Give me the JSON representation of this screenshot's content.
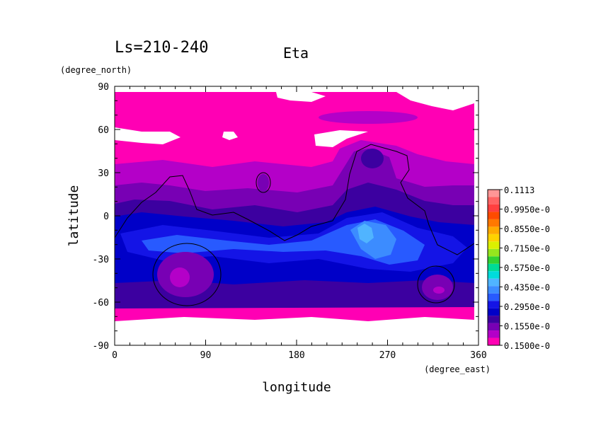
{
  "chart_data": {
    "type": "heatmap",
    "title": "Eta",
    "subtitle": "Ls=210-240",
    "xlabel": "longitude",
    "ylabel": "latitude",
    "x_unit": "(degree_east)",
    "y_unit": "(degree_north)",
    "xlim": [
      0,
      360
    ],
    "ylim": [
      -90,
      90
    ],
    "x_ticks": [
      "0",
      "90",
      "180",
      "270",
      "360"
    ],
    "y_ticks": [
      "90",
      "60",
      "30",
      "0",
      "-30",
      "-60",
      "-90"
    ],
    "colorbar": {
      "labels": [
        "0.1113",
        "0.9950e-0",
        "0.8550e-0",
        "0.7150e-0",
        "0.5750e-0",
        "0.4350e-0",
        "0.2950e-0",
        "0.1550e-0",
        "0.1500e-0"
      ],
      "colors": [
        "#ff00b4",
        "#b400c8",
        "#7800b4",
        "#3c00a0",
        "#0000c8",
        "#1414e6",
        "#285aff",
        "#3c8cff",
        "#50b4ff",
        "#00dcdc",
        "#00dc96",
        "#32d232",
        "#96e61e",
        "#dcf000",
        "#ffd200",
        "#ffaa00",
        "#ff7800",
        "#ff4b00",
        "#ff4040",
        "#ff6464",
        "#ff9696"
      ]
    },
    "grid": false,
    "legend": "right colorbar"
  }
}
